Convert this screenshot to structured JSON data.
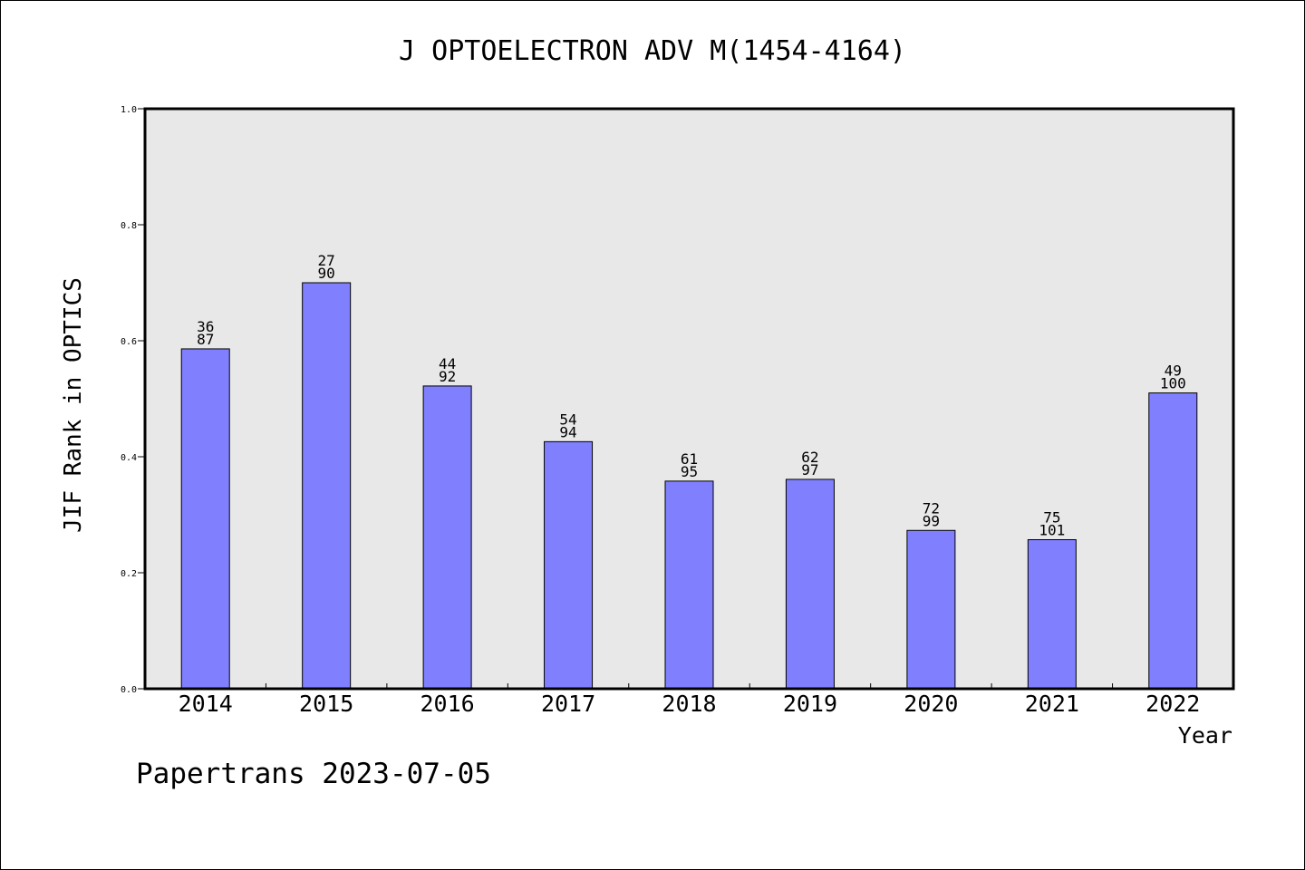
{
  "chart_data": {
    "type": "bar",
    "title": "J OPTOELECTRON ADV M(1454-4164)",
    "xlabel": "Year",
    "ylabel": "JIF Rank in OPTICS",
    "categories": [
      "2014",
      "2015",
      "2016",
      "2017",
      "2018",
      "2019",
      "2020",
      "2021",
      "2022"
    ],
    "values": [
      0.586,
      0.7,
      0.522,
      0.426,
      0.358,
      0.361,
      0.273,
      0.257,
      0.51
    ],
    "bar_labels": [
      [
        "36",
        "87"
      ],
      [
        "27",
        "90"
      ],
      [
        "44",
        "92"
      ],
      [
        "54",
        "94"
      ],
      [
        "61",
        "95"
      ],
      [
        "62",
        "97"
      ],
      [
        "72",
        "99"
      ],
      [
        "75",
        "101"
      ],
      [
        "49",
        "100"
      ]
    ],
    "ylim": [
      0,
      1.0
    ],
    "yticks": [
      "0.0",
      "0.2",
      "0.4",
      "0.6",
      "0.8",
      "1.0"
    ],
    "grid": false,
    "colors": {
      "bar_fill": "#8080ff",
      "plot_background": "#e8e8e8"
    }
  },
  "footer": {
    "watermark": "Papertrans 2023-07-05"
  }
}
